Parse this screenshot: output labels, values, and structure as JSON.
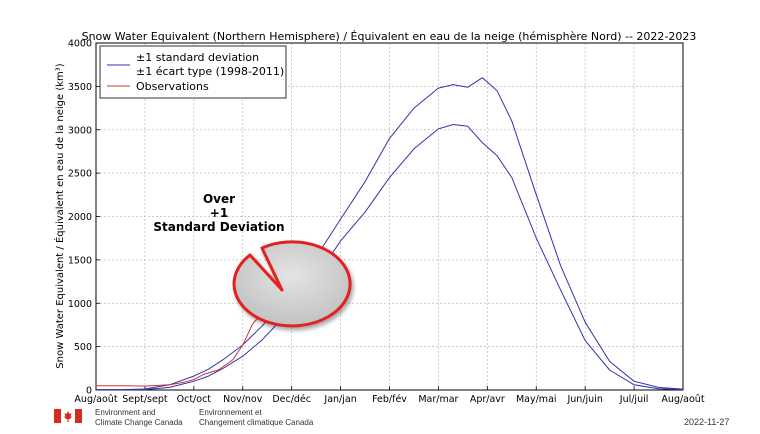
{
  "chart_data": {
    "type": "line",
    "title": "Snow Water Equivalent (Northern Hemisphere) / Équivalent en eau de la neige (hémisphère Nord) -- 2022-2023",
    "ylabel": "Snow Water Equivalent / Équivalent en eau de la neige (km³)",
    "xlabel": "",
    "ylim": [
      0,
      4000
    ],
    "yticks": [
      0,
      500,
      1000,
      1500,
      2000,
      2500,
      3000,
      3500,
      4000
    ],
    "xticks": [
      "Aug/août",
      "Sept/sept",
      "Oct/oct",
      "Nov/nov",
      "Dec/déc",
      "Jan/jan",
      "Feb/fév",
      "Mar/mar",
      "Apr/avr",
      "May/mai",
      "Jun/juin",
      "Jul/juil",
      "Aug/août"
    ],
    "grid": true,
    "legend_placement": "top-left",
    "legend": [
      {
        "label_line1": "±1 standard deviation",
        "label_line2": "±1 écart type (1998-2011)",
        "color": "#3333aa"
      },
      {
        "label_line1": "Observations",
        "color": "#cc3333"
      }
    ],
    "series": [
      {
        "name": "+1 standard deviation",
        "color": "#3333aa",
        "x": [
          0,
          0.5,
          1,
          1.5,
          2,
          2.3,
          2.6,
          3,
          3.4,
          3.8,
          4.2,
          4.6,
          5,
          5.5,
          6,
          6.5,
          7,
          7.3,
          7.6,
          7.9,
          8.2,
          8.5,
          9,
          9.5,
          10,
          10.5,
          11,
          11.5,
          12
        ],
        "y": [
          5,
          5,
          12,
          60,
          160,
          240,
          350,
          520,
          740,
          1000,
          1300,
          1620,
          1970,
          2400,
          2900,
          3250,
          3480,
          3520,
          3490,
          3600,
          3450,
          3100,
          2250,
          1430,
          780,
          330,
          100,
          30,
          10
        ]
      },
      {
        "name": "-1 standard deviation",
        "color": "#3333aa",
        "x": [
          0,
          0.5,
          1,
          1.5,
          2,
          2.3,
          2.6,
          3,
          3.4,
          3.8,
          4.2,
          4.6,
          5,
          5.5,
          6,
          6.5,
          7,
          7.3,
          7.6,
          7.9,
          8.2,
          8.5,
          9,
          9.5,
          10,
          10.5,
          11,
          11.5,
          12
        ],
        "y": [
          2,
          2,
          5,
          30,
          100,
          160,
          250,
          390,
          580,
          820,
          1080,
          1380,
          1720,
          2050,
          2450,
          2780,
          3010,
          3060,
          3040,
          2850,
          2700,
          2450,
          1750,
          1150,
          570,
          230,
          60,
          15,
          5
        ]
      },
      {
        "name": "Observations",
        "color": "#cc3333",
        "x": [
          0,
          0.5,
          1,
          1.5,
          1.8,
          2,
          2.2,
          2.5,
          2.8,
          3,
          3.2,
          3.5,
          3.8
        ],
        "y": [
          50,
          50,
          45,
          60,
          90,
          120,
          180,
          230,
          350,
          520,
          760,
          950,
          1150
        ]
      }
    ],
    "annotation": {
      "lines": [
        "Over",
        "+1",
        "Standard Deviation"
      ]
    }
  },
  "footer": {
    "org_en_line1": "Environment and",
    "org_en_line2": "Climate Change Canada",
    "org_fr_line1": "Environnement et",
    "org_fr_line2": "Changement climatique Canada",
    "date": "2022-11-27"
  }
}
